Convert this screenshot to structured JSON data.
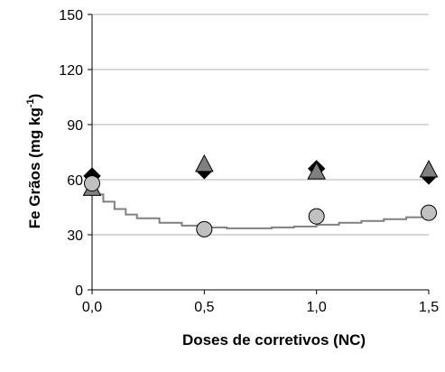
{
  "chart_data": {
    "type": "scatter",
    "title": "",
    "xlabel": "Doses de corretivos (NC)",
    "ylabel": "Fe Grãos (mg kg-1)",
    "ylabel_parts": {
      "main": "Fe Grãos (mg kg",
      "sup": "-1",
      "close": ")"
    },
    "xlim": [
      0,
      1.5
    ],
    "ylim": [
      0,
      150
    ],
    "x_ticks": [
      0,
      0.5,
      1.0,
      1.5
    ],
    "x_tick_labels": [
      "0,0",
      "0,5",
      "1,0",
      "1,5"
    ],
    "y_ticks": [
      0,
      30,
      60,
      90,
      120,
      150
    ],
    "y_tick_labels": [
      "0",
      "30",
      "60",
      "90",
      "120",
      "150"
    ],
    "grid": "horizontal",
    "legend": "none",
    "series": [
      {
        "marker": "diamond",
        "color": "#000000",
        "x": [
          0,
          0.5,
          1.0,
          1.5
        ],
        "y": [
          62,
          65,
          66,
          62
        ]
      },
      {
        "marker": "triangle",
        "color": "#808080",
        "x": [
          0,
          0.5,
          1.0,
          1.5
        ],
        "y": [
          55,
          68,
          64,
          65
        ]
      },
      {
        "marker": "circle",
        "color": "#c0c0c0",
        "x": [
          0,
          0.5,
          1.0,
          1.5
        ],
        "y": [
          58,
          33,
          40,
          42
        ]
      }
    ],
    "fit_curve": {
      "color": "#808080",
      "x": [
        0,
        0.02,
        0.05,
        0.1,
        0.15,
        0.2,
        0.3,
        0.4,
        0.5,
        0.6,
        0.7,
        0.8,
        0.9,
        1.0,
        1.1,
        1.2,
        1.3,
        1.4,
        1.5
      ],
      "y": [
        58,
        52,
        48,
        44,
        41,
        39,
        36.5,
        35,
        34,
        33.5,
        33.5,
        34,
        34.5,
        35.5,
        36.5,
        37.5,
        38.5,
        39.5,
        41
      ]
    }
  }
}
